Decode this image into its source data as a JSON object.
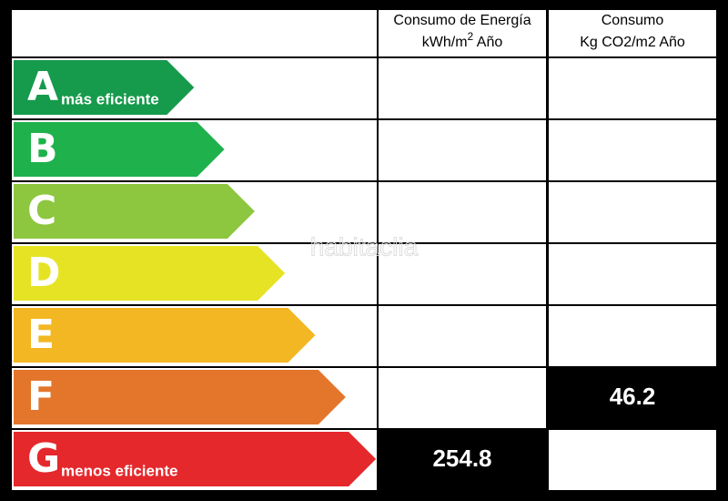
{
  "header": {
    "energy_line1": "Consumo de Energía",
    "energy_unit": "kWh/m",
    "energy_exponent": "2",
    "energy_suffix": " Año",
    "co2_line1": "Consumo",
    "co2_line2": "Kg CO2/m2 Año"
  },
  "watermark": "habitaclia",
  "rows": [
    {
      "letter": "A",
      "note": "más eficiente",
      "color": "#169a4c",
      "length": 1
    },
    {
      "letter": "B",
      "color": "#1fb14c",
      "length": 2
    },
    {
      "letter": "C",
      "color": "#8dc63f",
      "length": 3
    },
    {
      "letter": "D",
      "color": "#e6e325",
      "length": 4
    },
    {
      "letter": "E",
      "color": "#f2b722",
      "length": 5
    },
    {
      "letter": "F",
      "color": "#e3762b",
      "length": 6,
      "co2": 46.2
    },
    {
      "letter": "G",
      "note": "menos eficiente",
      "color": "#e4282c",
      "length": 7,
      "energy": 254.8
    }
  ]
}
